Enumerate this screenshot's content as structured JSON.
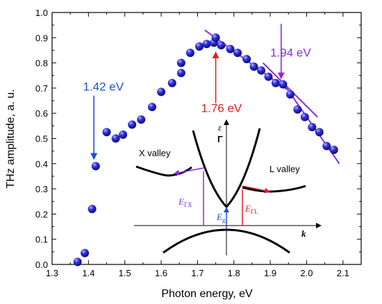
{
  "chart_data": {
    "type": "scatter",
    "xlabel": "Photon energy, eV",
    "ylabel": "THz amplitude, a. u.",
    "xlim": [
      1.3,
      2.15
    ],
    "ylim": [
      0.0,
      1.0
    ],
    "x_ticks": [
      "1.3",
      "1.4",
      "1.5",
      "1.6",
      "1.7",
      "1.8",
      "1.9",
      "2.0",
      "2.1"
    ],
    "y_ticks": [
      "0.0",
      "0.1",
      "0.2",
      "0.3",
      "0.4",
      "0.5",
      "0.6",
      "0.7",
      "0.8",
      "0.9",
      "1.0"
    ],
    "grid": false,
    "marker_color": "#1f1fd6",
    "points": [
      {
        "x": 1.37,
        "y": 0.01
      },
      {
        "x": 1.39,
        "y": 0.045
      },
      {
        "x": 1.41,
        "y": 0.22
      },
      {
        "x": 1.42,
        "y": 0.39
      },
      {
        "x": 1.45,
        "y": 0.525
      },
      {
        "x": 1.475,
        "y": 0.5
      },
      {
        "x": 1.495,
        "y": 0.515
      },
      {
        "x": 1.52,
        "y": 0.555
      },
      {
        "x": 1.545,
        "y": 0.575
      },
      {
        "x": 1.575,
        "y": 0.625
      },
      {
        "x": 1.6,
        "y": 0.685
      },
      {
        "x": 1.63,
        "y": 0.72
      },
      {
        "x": 1.655,
        "y": 0.76
      },
      {
        "x": 1.655,
        "y": 0.8
      },
      {
        "x": 1.68,
        "y": 0.84
      },
      {
        "x": 1.705,
        "y": 0.865
      },
      {
        "x": 1.725,
        "y": 0.875
      },
      {
        "x": 1.745,
        "y": 0.88
      },
      {
        "x": 1.75,
        "y": 0.9
      },
      {
        "x": 1.765,
        "y": 0.87
      },
      {
        "x": 1.79,
        "y": 0.855
      },
      {
        "x": 1.81,
        "y": 0.84
      },
      {
        "x": 1.835,
        "y": 0.815
      },
      {
        "x": 1.855,
        "y": 0.785
      },
      {
        "x": 1.875,
        "y": 0.77
      },
      {
        "x": 1.895,
        "y": 0.745
      },
      {
        "x": 1.915,
        "y": 0.72
      },
      {
        "x": 1.935,
        "y": 0.715
      },
      {
        "x": 1.955,
        "y": 0.675
      },
      {
        "x": 1.975,
        "y": 0.615
      },
      {
        "x": 1.995,
        "y": 0.585
      },
      {
        "x": 2.015,
        "y": 0.545
      },
      {
        "x": 2.035,
        "y": 0.525
      },
      {
        "x": 2.055,
        "y": 0.47
      },
      {
        "x": 2.075,
        "y": 0.455
      }
    ],
    "fit_lines": [
      {
        "color": "#8a2be2",
        "from": [
          1.72,
          0.93
        ],
        "to": [
          1.945,
          0.695
        ]
      },
      {
        "color": "#8a2be2",
        "from": [
          1.88,
          0.8
        ],
        "to": [
          2.03,
          0.585
        ]
      },
      {
        "color": "#8a2be2",
        "from": [
          1.935,
          0.72
        ],
        "to": [
          2.09,
          0.4
        ]
      }
    ],
    "annotations": [
      {
        "text": "1.42 eV",
        "color": "#1f4fd6",
        "label_at": [
          1.385,
          0.69
        ],
        "arrow_from": [
          1.415,
          0.67
        ],
        "arrow_to": [
          1.415,
          0.42
        ]
      },
      {
        "text": "1.76 eV",
        "color": "#e02020",
        "label_at": [
          1.71,
          0.605
        ],
        "arrow_from": [
          1.75,
          0.64
        ],
        "arrow_to": [
          1.75,
          0.84
        ]
      },
      {
        "text": "1.94 eV",
        "color": "#8a2be2",
        "label_at": [
          1.9,
          0.825
        ],
        "arrow_from": [
          1.93,
          0.955
        ],
        "arrow_to": [
          1.93,
          0.74
        ]
      }
    ],
    "inset": {
      "axis_labels": {
        "energy": "ε",
        "wavevector": "k"
      },
      "point_label": "Γ",
      "valley_labels": [
        "X valley",
        "L valley"
      ],
      "transition_labels": {
        "gamma_x": {
          "main": "E",
          "sub": "ΓX"
        },
        "gap": {
          "main": "E",
          "sub": "g"
        },
        "gamma_l": {
          "main": "E",
          "sub": "ΓL"
        }
      },
      "colors": {
        "gamma_x": "#8a2be2",
        "gap": "#1f4fd6",
        "gamma_l": "#e02020"
      }
    }
  }
}
